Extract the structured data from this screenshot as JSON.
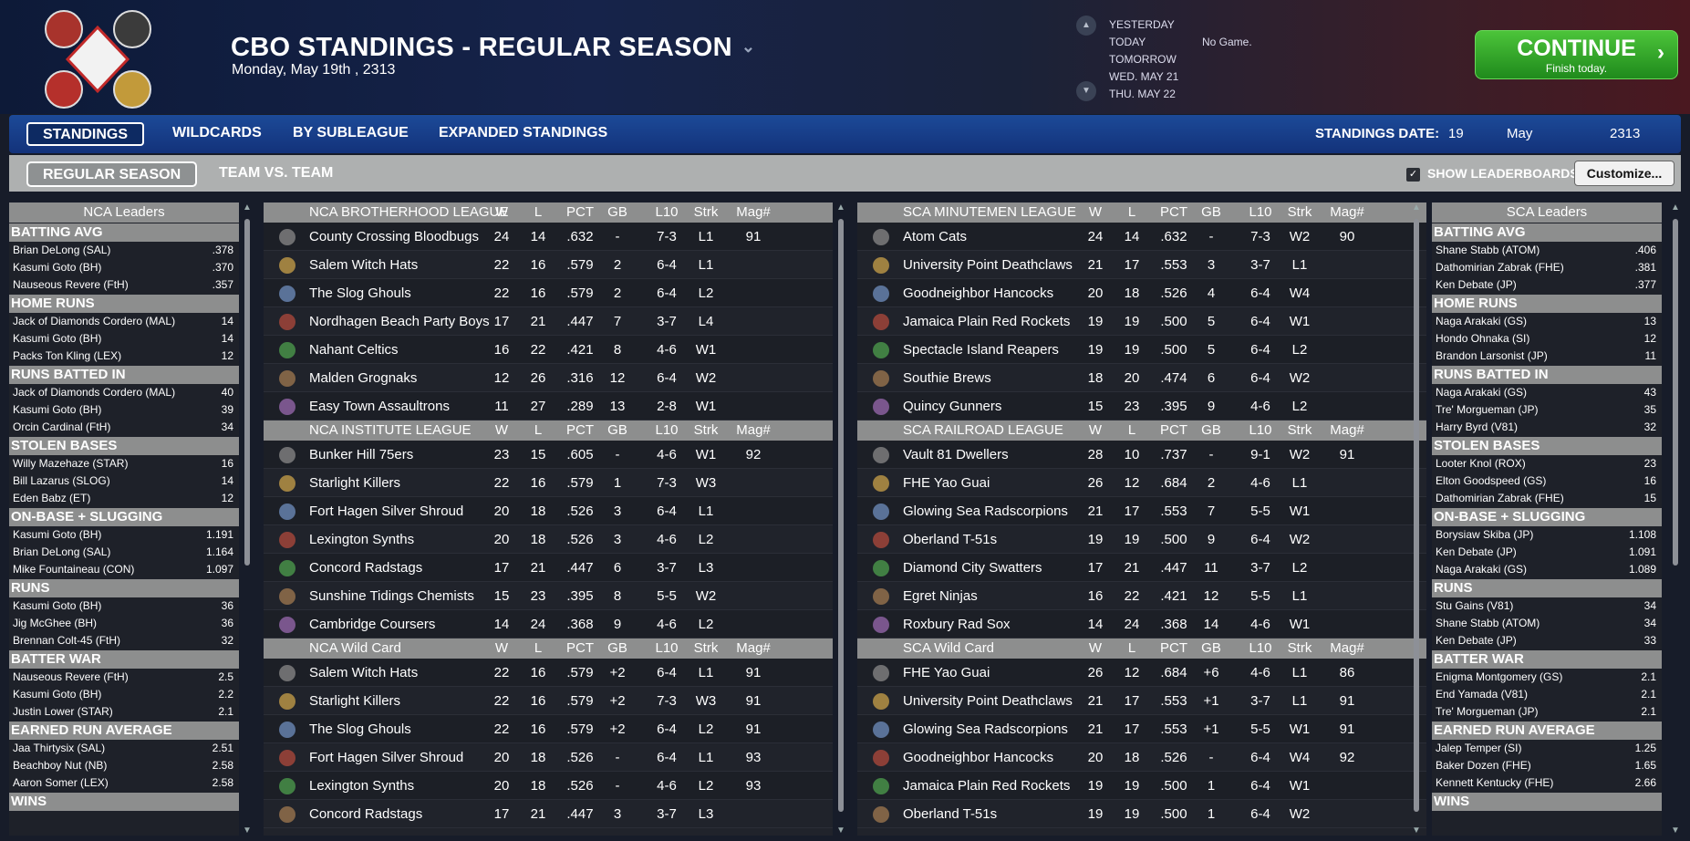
{
  "header": {
    "title": "CBO STANDINGS - REGULAR SEASON",
    "date": "Monday, May 19th , 2313",
    "days": [
      "YESTERDAY",
      "TODAY",
      "TOMORROW",
      "WED. MAY 21",
      "THU. MAY 22"
    ],
    "no_game": "No Game.",
    "continue_label": "CONTINUE",
    "continue_sub": "Finish today."
  },
  "tabs": [
    "STANDINGS",
    "WILDCARDS",
    "BY SUBLEAGUE",
    "EXPANDED STANDINGS"
  ],
  "standings_date": {
    "label": "STANDINGS DATE:",
    "day": "19",
    "month": "May",
    "year": "2313"
  },
  "subtabs": [
    "REGULAR SEASON",
    "TEAM VS. TEAM"
  ],
  "show_leaderboards": "SHOW LEADERBOARDS",
  "customize": "Customize...",
  "columns": [
    "W",
    "L",
    "PCT",
    "GB",
    "L10",
    "Strk",
    "Mag#"
  ],
  "left_leaders": {
    "title": "NCA Leaders",
    "cats": [
      {
        "name": "BATTING AVG",
        "rows": [
          [
            "Brian DeLong (SAL)",
            ".378"
          ],
          [
            "Kasumi Goto (BH)",
            ".370"
          ],
          [
            "Nauseous Revere (FtH)",
            ".357"
          ]
        ]
      },
      {
        "name": "HOME RUNS",
        "rows": [
          [
            "Jack of Diamonds Cordero (MAL)",
            "14"
          ],
          [
            "Kasumi Goto (BH)",
            "14"
          ],
          [
            "Packs Ton Kling (LEX)",
            "12"
          ]
        ]
      },
      {
        "name": "RUNS BATTED IN",
        "rows": [
          [
            "Jack of Diamonds Cordero (MAL)",
            "40"
          ],
          [
            "Kasumi Goto (BH)",
            "39"
          ],
          [
            "Orcin Cardinal (FtH)",
            "34"
          ]
        ]
      },
      {
        "name": "STOLEN BASES",
        "rows": [
          [
            "Willy Mazehaze (STAR)",
            "16"
          ],
          [
            "Bill Lazarus (SLOG)",
            "14"
          ],
          [
            "Eden Babz (ET)",
            "12"
          ]
        ]
      },
      {
        "name": "ON-BASE + SLUGGING",
        "rows": [
          [
            "Kasumi Goto (BH)",
            "1.191"
          ],
          [
            "Brian DeLong (SAL)",
            "1.164"
          ],
          [
            "Mike Fountaineau (CON)",
            "1.097"
          ]
        ]
      },
      {
        "name": "RUNS",
        "rows": [
          [
            "Kasumi Goto (BH)",
            "36"
          ],
          [
            "Jig McGhee (BH)",
            "36"
          ],
          [
            "Brennan Colt-45 (FtH)",
            "32"
          ]
        ]
      },
      {
        "name": "BATTER WAR",
        "rows": [
          [
            "Nauseous Revere (FtH)",
            "2.5"
          ],
          [
            "Kasumi Goto (BH)",
            "2.2"
          ],
          [
            "Justin Lower (STAR)",
            "2.1"
          ]
        ]
      },
      {
        "name": "EARNED RUN AVERAGE",
        "rows": [
          [
            "Jaa Thirtysix (SAL)",
            "2.51"
          ],
          [
            "Beachboy Nut (NB)",
            "2.58"
          ],
          [
            "Aaron Somer (LEX)",
            "2.58"
          ]
        ]
      },
      {
        "name": "WINS",
        "rows": []
      }
    ]
  },
  "right_leaders": {
    "title": "SCA Leaders",
    "cats": [
      {
        "name": "BATTING AVG",
        "rows": [
          [
            "Shane Stabb (ATOM)",
            ".406"
          ],
          [
            "Dathomirian Zabrak (FHE)",
            ".381"
          ],
          [
            "Ken Debate (JP)",
            ".377"
          ]
        ]
      },
      {
        "name": "HOME RUNS",
        "rows": [
          [
            "Naga Arakaki (GS)",
            "13"
          ],
          [
            "Hondo Ohnaka (SI)",
            "12"
          ],
          [
            "Brandon Larsonist (JP)",
            "11"
          ]
        ]
      },
      {
        "name": "RUNS BATTED IN",
        "rows": [
          [
            "Naga Arakaki (GS)",
            "43"
          ],
          [
            "Tre' Morgueman (JP)",
            "35"
          ],
          [
            "Harry Byrd (V81)",
            "32"
          ]
        ]
      },
      {
        "name": "STOLEN BASES",
        "rows": [
          [
            "Looter Knol (ROX)",
            "23"
          ],
          [
            "Elton Goodspeed (GS)",
            "16"
          ],
          [
            "Dathomirian Zabrak (FHE)",
            "15"
          ]
        ]
      },
      {
        "name": "ON-BASE + SLUGGING",
        "rows": [
          [
            "Borysiaw Skiba (JP)",
            "1.108"
          ],
          [
            "Ken Debate (JP)",
            "1.091"
          ],
          [
            "Naga Arakaki (GS)",
            "1.089"
          ]
        ]
      },
      {
        "name": "RUNS",
        "rows": [
          [
            "Stu Gains (V81)",
            "34"
          ],
          [
            "Shane Stabb (ATOM)",
            "34"
          ],
          [
            "Ken Debate (JP)",
            "33"
          ]
        ]
      },
      {
        "name": "BATTER WAR",
        "rows": [
          [
            "Enigma Montgomery (GS)",
            "2.1"
          ],
          [
            "End Yamada (V81)",
            "2.1"
          ],
          [
            "Tre' Morgueman (JP)",
            "2.1"
          ]
        ]
      },
      {
        "name": "EARNED RUN AVERAGE",
        "rows": [
          [
            "Jalep Temper (SI)",
            "1.25"
          ],
          [
            "Baker Dozen (FHE)",
            "1.65"
          ],
          [
            "Kennett Kentucky (FHE)",
            "2.66"
          ]
        ]
      },
      {
        "name": "WINS",
        "rows": []
      }
    ]
  },
  "left_table": [
    {
      "name": "NCA BROTHERHOOD LEAGUE",
      "teams": [
        [
          "County Crossing Bloodbugs",
          "24",
          "14",
          ".632",
          "-",
          "7-3",
          "L1",
          "91"
        ],
        [
          "Salem Witch Hats",
          "22",
          "16",
          ".579",
          "2",
          "6-4",
          "L1",
          ""
        ],
        [
          "The Slog Ghouls",
          "22",
          "16",
          ".579",
          "2",
          "6-4",
          "L2",
          ""
        ],
        [
          "Nordhagen Beach Party Boys",
          "17",
          "21",
          ".447",
          "7",
          "3-7",
          "L4",
          ""
        ],
        [
          "Nahant Celtics",
          "16",
          "22",
          ".421",
          "8",
          "4-6",
          "W1",
          ""
        ],
        [
          "Malden Grognaks",
          "12",
          "26",
          ".316",
          "12",
          "6-4",
          "W2",
          ""
        ],
        [
          "Easy Town Assaultrons",
          "11",
          "27",
          ".289",
          "13",
          "2-8",
          "W1",
          ""
        ]
      ]
    },
    {
      "name": "NCA INSTITUTE LEAGUE",
      "teams": [
        [
          "Bunker Hill 75ers",
          "23",
          "15",
          ".605",
          "-",
          "4-6",
          "W1",
          "92"
        ],
        [
          "Starlight Killers",
          "22",
          "16",
          ".579",
          "1",
          "7-3",
          "W3",
          ""
        ],
        [
          "Fort Hagen Silver Shroud",
          "20",
          "18",
          ".526",
          "3",
          "6-4",
          "L1",
          ""
        ],
        [
          "Lexington Synths",
          "20",
          "18",
          ".526",
          "3",
          "4-6",
          "L2",
          ""
        ],
        [
          "Concord Radstags",
          "17",
          "21",
          ".447",
          "6",
          "3-7",
          "L3",
          ""
        ],
        [
          "Sunshine Tidings Chemists",
          "15",
          "23",
          ".395",
          "8",
          "5-5",
          "W2",
          ""
        ],
        [
          "Cambridge Coursers",
          "14",
          "24",
          ".368",
          "9",
          "4-6",
          "L2",
          ""
        ]
      ]
    },
    {
      "name": "NCA  Wild Card",
      "teams": [
        [
          "Salem Witch Hats",
          "22",
          "16",
          ".579",
          "+2",
          "6-4",
          "L1",
          "91"
        ],
        [
          "Starlight Killers",
          "22",
          "16",
          ".579",
          "+2",
          "7-3",
          "W3",
          "91"
        ],
        [
          "The Slog Ghouls",
          "22",
          "16",
          ".579",
          "+2",
          "6-4",
          "L2",
          "91"
        ],
        [
          "Fort Hagen Silver Shroud",
          "20",
          "18",
          ".526",
          "-",
          "6-4",
          "L1",
          "93"
        ],
        [
          "Lexington Synths",
          "20",
          "18",
          ".526",
          "-",
          "4-6",
          "L2",
          "93"
        ],
        [
          "Concord Radstags",
          "17",
          "21",
          ".447",
          "3",
          "3-7",
          "L3",
          ""
        ]
      ]
    }
  ],
  "right_table": [
    {
      "name": "SCA MINUTEMEN LEAGUE",
      "teams": [
        [
          "Atom Cats",
          "24",
          "14",
          ".632",
          "-",
          "7-3",
          "W2",
          "90"
        ],
        [
          "University Point Deathclaws",
          "21",
          "17",
          ".553",
          "3",
          "3-7",
          "L1",
          ""
        ],
        [
          "Goodneighbor Hancocks",
          "20",
          "18",
          ".526",
          "4",
          "6-4",
          "W4",
          ""
        ],
        [
          "Jamaica Plain Red Rockets",
          "19",
          "19",
          ".500",
          "5",
          "6-4",
          "W1",
          ""
        ],
        [
          "Spectacle Island Reapers",
          "19",
          "19",
          ".500",
          "5",
          "6-4",
          "L2",
          ""
        ],
        [
          "Southie Brews",
          "18",
          "20",
          ".474",
          "6",
          "6-4",
          "W2",
          ""
        ],
        [
          "Quincy Gunners",
          "15",
          "23",
          ".395",
          "9",
          "4-6",
          "L2",
          ""
        ]
      ]
    },
    {
      "name": "SCA RAILROAD LEAGUE",
      "teams": [
        [
          "Vault 81 Dwellers",
          "28",
          "10",
          ".737",
          "-",
          "9-1",
          "W2",
          "91"
        ],
        [
          "FHE Yao Guai",
          "26",
          "12",
          ".684",
          "2",
          "4-6",
          "L1",
          ""
        ],
        [
          "Glowing Sea Radscorpions",
          "21",
          "17",
          ".553",
          "7",
          "5-5",
          "W1",
          ""
        ],
        [
          "Oberland T-51s",
          "19",
          "19",
          ".500",
          "9",
          "6-4",
          "W2",
          ""
        ],
        [
          "Diamond City Swatters",
          "17",
          "21",
          ".447",
          "11",
          "3-7",
          "L2",
          ""
        ],
        [
          "Egret Ninjas",
          "16",
          "22",
          ".421",
          "12",
          "5-5",
          "L1",
          ""
        ],
        [
          "Roxbury Rad Sox",
          "14",
          "24",
          ".368",
          "14",
          "4-6",
          "W1",
          ""
        ]
      ]
    },
    {
      "name": "SCA  Wild Card",
      "teams": [
        [
          "FHE Yao Guai",
          "26",
          "12",
          ".684",
          "+6",
          "4-6",
          "L1",
          "86"
        ],
        [
          "University Point Deathclaws",
          "21",
          "17",
          ".553",
          "+1",
          "3-7",
          "L1",
          "91"
        ],
        [
          "Glowing Sea Radscorpions",
          "21",
          "17",
          ".553",
          "+1",
          "5-5",
          "W1",
          "91"
        ],
        [
          "Goodneighbor Hancocks",
          "20",
          "18",
          ".526",
          "-",
          "6-4",
          "W4",
          "92"
        ],
        [
          "Jamaica Plain Red Rockets",
          "19",
          "19",
          ".500",
          "1",
          "6-4",
          "W1",
          ""
        ],
        [
          "Oberland T-51s",
          "19",
          "19",
          ".500",
          "1",
          "6-4",
          "W2",
          ""
        ]
      ]
    }
  ],
  "colors": {
    "continue_green": "#2fa82a",
    "tab_blue": "#1a4190",
    "header_gray": "#8d8e8e"
  }
}
